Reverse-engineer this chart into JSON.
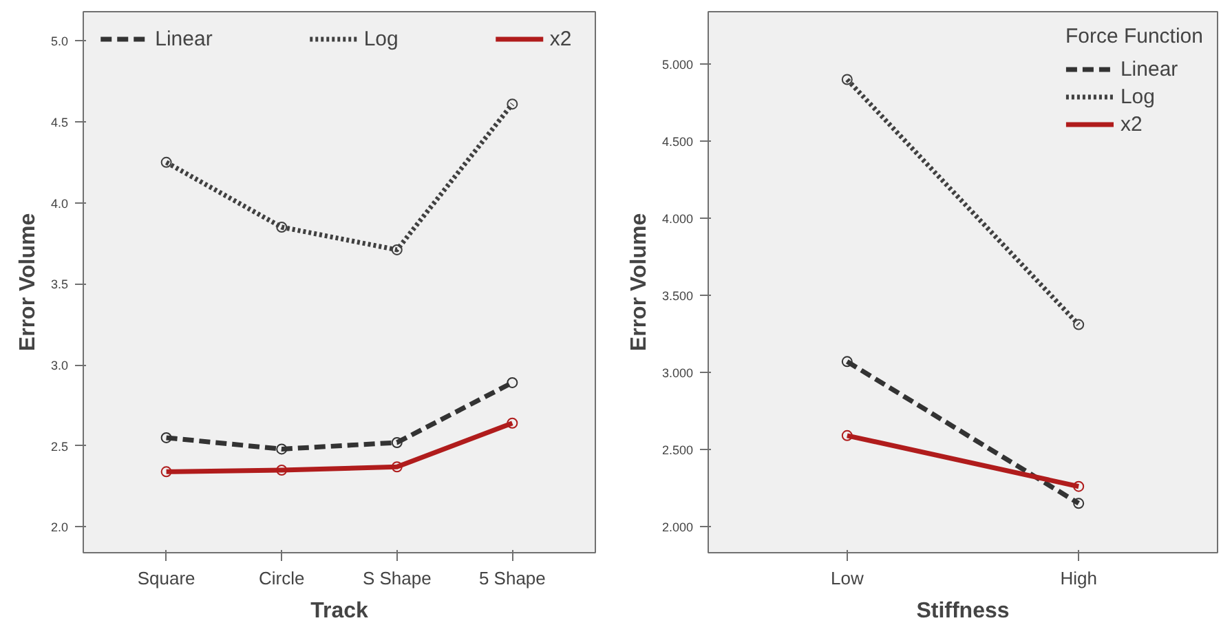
{
  "chart_data": [
    {
      "type": "line",
      "xlabel": "Track",
      "ylabel": "Error Volume",
      "categories": [
        "Square",
        "Circle",
        "S Shape",
        "5 Shape"
      ],
      "ylim": [
        1.84,
        5.18
      ],
      "yticks": [
        {
          "value": 2,
          "label": "2.0"
        },
        {
          "value": 2.5,
          "label": "2.5"
        },
        {
          "value": 3,
          "label": "3.0"
        },
        {
          "value": 3.5,
          "label": "3.5"
        },
        {
          "value": 4,
          "label": "4.0"
        },
        {
          "value": 4.5,
          "label": "4.5"
        },
        {
          "value": 5,
          "label": "5.0"
        }
      ],
      "grid": false,
      "legend": "top",
      "marker": "circle",
      "series": [
        {
          "name": "Linear",
          "color": "#333333",
          "line_style": "dashed",
          "values": [
            2.55,
            2.48,
            2.52,
            2.89
          ]
        },
        {
          "name": "Log",
          "color": "#404040",
          "line_style": "dotted",
          "values": [
            4.25,
            3.85,
            3.71,
            4.61
          ]
        },
        {
          "name": "x2",
          "color": "#b01c1c",
          "line_style": "solid",
          "values": [
            2.34,
            2.35,
            2.37,
            2.64
          ]
        }
      ]
    },
    {
      "type": "line",
      "xlabel": "Stiffness",
      "ylabel": "Error Volume",
      "legend_title": "Force Function",
      "categories": [
        "Low",
        "High"
      ],
      "ylim": [
        1.83,
        5.34
      ],
      "yticks": [
        {
          "value": 2,
          "label": "2.000"
        },
        {
          "value": 2.5,
          "label": "2.500"
        },
        {
          "value": 3,
          "label": "3.000"
        },
        {
          "value": 3.5,
          "label": "3.500"
        },
        {
          "value": 4,
          "label": "4.000"
        },
        {
          "value": 4.5,
          "label": "4.500"
        },
        {
          "value": 5,
          "label": "5.000"
        }
      ],
      "grid": false,
      "legend": "top right",
      "marker": "circle",
      "series": [
        {
          "name": "Linear",
          "color": "#333333",
          "line_style": "dashed",
          "values": [
            3.07,
            2.15
          ]
        },
        {
          "name": "Log",
          "color": "#404040",
          "line_style": "dotted",
          "values": [
            4.9,
            3.31
          ]
        },
        {
          "name": "x2",
          "color": "#b01c1c",
          "line_style": "solid",
          "values": [
            2.59,
            2.26
          ]
        }
      ]
    }
  ]
}
